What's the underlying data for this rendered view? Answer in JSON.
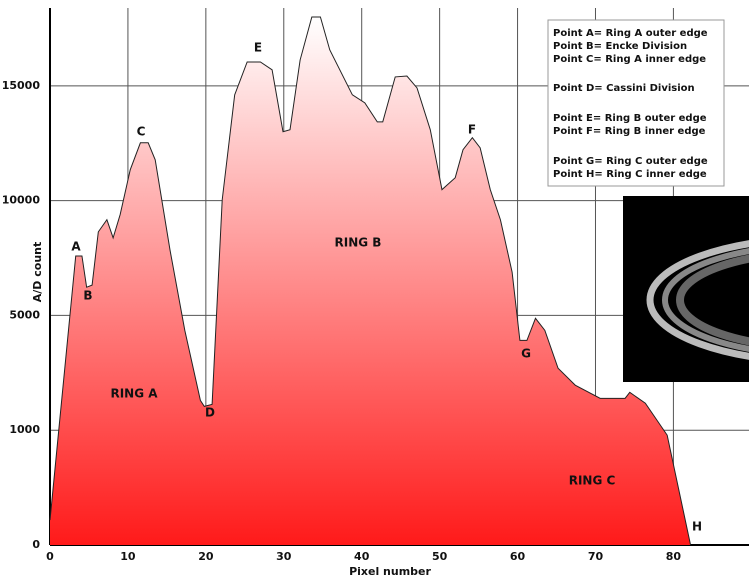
{
  "chart_data": {
    "type": "area",
    "x_label": "Pixel number",
    "y_label": "A/D count",
    "x": [
      0,
      3.3,
      4.1,
      4.7,
      5.4,
      6.2,
      7.3,
      8.1,
      9.0,
      10.3,
      11.6,
      12.6,
      13.5,
      15.4,
      17.3,
      19.3,
      19.8,
      20.8,
      22.1,
      23.7,
      25.3,
      27.0,
      28.5,
      29.9,
      30.8,
      32.1,
      33.6,
      34.7,
      35.9,
      38.8,
      40.4,
      42.0,
      42.7,
      44.3,
      45.8,
      47.1,
      48.8,
      50.3,
      52.0,
      53.0,
      54.2,
      55.2,
      56.5,
      57.8,
      59.3,
      60.3,
      61.2,
      62.3,
      63.5,
      65.2,
      67.4,
      70.6,
      73.8,
      74.4,
      76.4,
      79.2,
      82.2
    ],
    "values": [
      217,
      7590,
      7590,
      6230,
      6320,
      8640,
      9170,
      8380,
      9390,
      11350,
      12520,
      12520,
      11780,
      7850,
      4480,
      2040,
      1830,
      1900,
      10040,
      14610,
      16040,
      16040,
      15700,
      13000,
      13090,
      16130,
      18000,
      18000,
      16570,
      14610,
      14260,
      13430,
      13430,
      15390,
      15430,
      14910,
      13090,
      10480,
      11000,
      12220,
      12740,
      12300,
      10480,
      9170,
      6890,
      4130,
      4130,
      4900,
      4480,
      3160,
      2570,
      2110,
      2110,
      2320,
      1940,
      957,
      0
    ],
    "xlim": [
      0,
      89.7
    ],
    "xticks": [
      0,
      10,
      20,
      30,
      40,
      50,
      60,
      70,
      80
    ],
    "ylim": [
      0,
      18000
    ],
    "yticks": [
      0,
      1000,
      5000,
      10000,
      15000
    ],
    "grid": true,
    "color_top": "#ffffff",
    "color_bottom": "#ff1a1a",
    "annotations": [
      "A",
      "B",
      "C",
      "D",
      "E",
      "F",
      "G",
      "H",
      "RING A",
      "RING B",
      "RING C"
    ],
    "notes": [
      "Point A= Ring A outer edge",
      "Point B= Encke Division",
      "Point C= Ring A inner edge",
      "Point D= Cassini Division",
      "Point E= Ring B outer edge",
      "Point F= Ring B inner edge",
      "Point G= Ring C outer edge",
      "Point H= Ring C inner edge"
    ]
  }
}
